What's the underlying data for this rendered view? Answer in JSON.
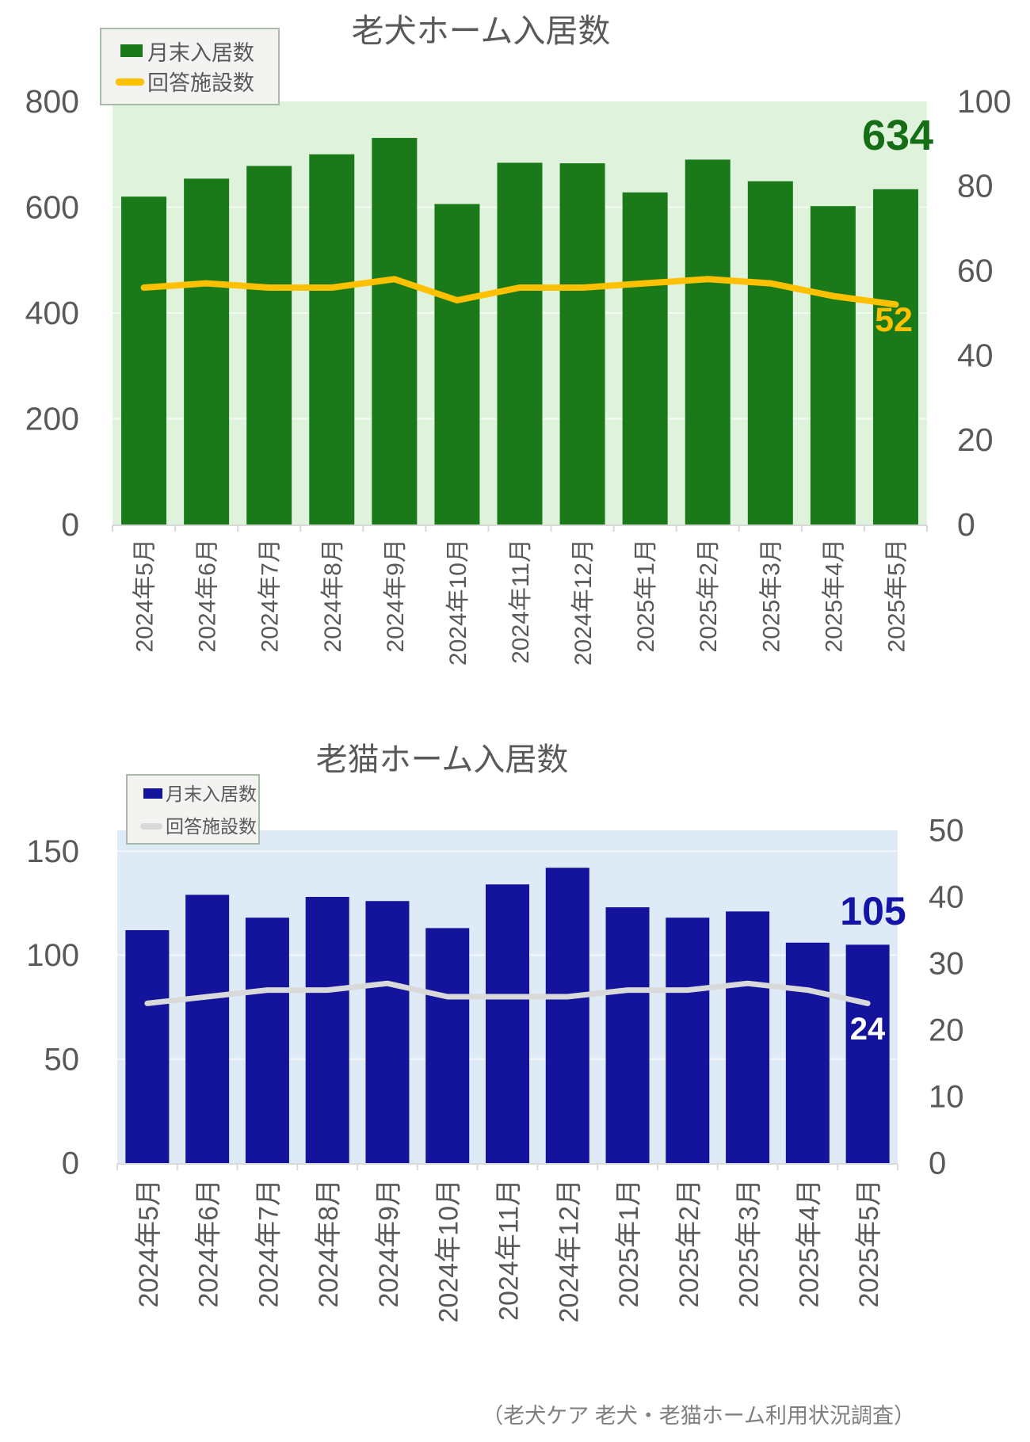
{
  "page": {
    "background": "#FFFFFF",
    "text_color": "#595959",
    "axis_line_color": "#D9D9D9",
    "source_note": "（老犬ケア 老犬・老猫ホーム利用状況調査）",
    "source_note_color": "#7F7F7F",
    "legend_bg": "#F3F3F1",
    "legend_border": "#A6BCA6"
  },
  "chart_data": [
    {
      "type": "bar",
      "subtype": "combo-bar-line",
      "title": "老犬ホーム入居数",
      "legend_position": "top-left",
      "grid": "on",
      "plot_band_color": "#DFF2DB",
      "categories": [
        "2024年5月",
        "2024年6月",
        "2024年7月",
        "2024年8月",
        "2024年9月",
        "2024年10月",
        "2024年11月",
        "2024年12月",
        "2025年1月",
        "2025年2月",
        "2025年3月",
        "2025年4月",
        "2025年5月"
      ],
      "series": [
        {
          "name": "月末入居数",
          "chart": "bar",
          "axis": "left",
          "color": "#1A7A1A",
          "values": [
            620,
            654,
            678,
            700,
            731,
            606,
            684,
            683,
            628,
            690,
            649,
            602,
            634
          ]
        },
        {
          "name": "回答施設数",
          "chart": "line",
          "axis": "right",
          "color": "#FFC000",
          "values": [
            56,
            57,
            56,
            56,
            58,
            53,
            56,
            56,
            57,
            58,
            57,
            54,
            52
          ]
        }
      ],
      "left_axis": {
        "min": 0,
        "max": 800,
        "ticks": [
          0,
          200,
          400,
          600,
          800
        ]
      },
      "right_axis": {
        "min": 0,
        "max": 100,
        "ticks": [
          0,
          20,
          40,
          60,
          80,
          100
        ]
      },
      "end_labels": [
        {
          "text": "634",
          "series": "月末入居数",
          "color": "#156E15"
        },
        {
          "text": "52",
          "series": "回答施設数",
          "color": "#FFC000"
        }
      ]
    },
    {
      "type": "bar",
      "subtype": "combo-bar-line",
      "title": "老猫ホーム入居数",
      "legend_position": "top-left",
      "grid": "on",
      "plot_band_color": "#DEEAF6",
      "categories": [
        "2024年5月",
        "2024年6月",
        "2024年7月",
        "2024年8月",
        "2024年9月",
        "2024年10月",
        "2024年11月",
        "2024年12月",
        "2025年1月",
        "2025年2月",
        "2025年3月",
        "2025年4月",
        "2025年5月"
      ],
      "series": [
        {
          "name": "月末入居数",
          "chart": "bar",
          "axis": "left",
          "color": "#14139C",
          "values": [
            112,
            129,
            118,
            128,
            126,
            113,
            134,
            142,
            123,
            118,
            121,
            106,
            105
          ]
        },
        {
          "name": "回答施設数",
          "chart": "line",
          "axis": "right",
          "color": "#D9D9D9",
          "values": [
            24,
            25,
            26,
            26,
            27,
            25,
            25,
            25,
            26,
            26,
            27,
            26,
            24
          ]
        }
      ],
      "left_axis": {
        "min": 0,
        "max": 160,
        "ticks": [
          0,
          50,
          100,
          150
        ]
      },
      "right_axis": {
        "min": 0,
        "max": 50,
        "ticks": [
          0,
          10,
          20,
          30,
          40,
          50
        ]
      },
      "end_labels": [
        {
          "text": "105",
          "series": "月末入居数",
          "color": "#1414A8"
        },
        {
          "text": "24",
          "series": "回答施設数",
          "color": "#FFFFFF"
        }
      ]
    }
  ]
}
